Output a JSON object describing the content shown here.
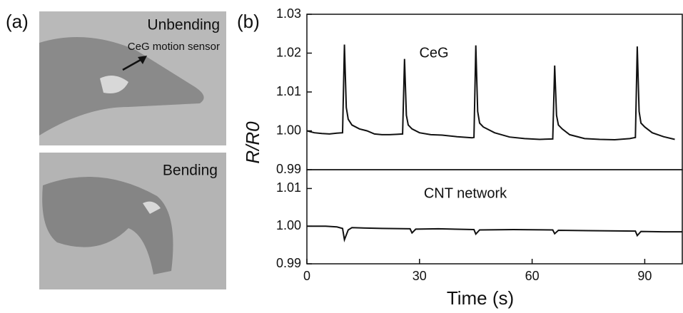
{
  "panel_a": {
    "label": "(a)",
    "top_photo_label": "Unbending",
    "annotation": "CeG motion sensor",
    "bottom_photo_label": "Bending"
  },
  "chart_data": [
    {
      "type": "line",
      "panel_label": "(b)",
      "ylabel": "R/R0",
      "xlim": [
        0,
        100
      ],
      "ylim": [
        0.99,
        1.03
      ],
      "yticks": [
        0.99,
        {
          "value": 1.0,
          "label": "1.00"
        },
        1.01,
        1.02,
        1.03
      ],
      "series": [
        {
          "name": "CeG",
          "color": "#111111",
          "x": [
            0,
            2,
            4,
            6,
            8,
            9.5,
            10,
            10.5,
            11,
            12,
            14,
            16,
            18,
            20,
            22,
            24,
            25.5,
            26,
            26.5,
            27,
            28,
            30,
            33,
            36,
            40,
            44,
            44.5,
            45,
            45.5,
            46,
            47,
            50,
            54,
            58,
            62,
            65.5,
            66,
            66.5,
            67,
            68,
            70,
            74,
            78,
            82,
            86,
            87.5,
            88,
            88.5,
            89,
            90,
            92,
            95,
            98
          ],
          "values": [
            1.0,
            0.9995,
            0.9993,
            0.9992,
            0.9994,
            0.9995,
            1.0222,
            1.006,
            1.003,
            1.0015,
            1.0005,
            1.0,
            0.9992,
            0.999,
            0.999,
            0.9991,
            0.9992,
            1.0185,
            1.004,
            1.0015,
            1.0005,
            0.9995,
            0.999,
            0.9989,
            0.9985,
            0.9982,
            0.9983,
            1.022,
            1.005,
            1.002,
            1.001,
            0.9995,
            0.9984,
            0.998,
            0.9978,
            0.9979,
            1.0168,
            1.004,
            1.0015,
            1.0005,
            0.999,
            0.998,
            0.9978,
            0.9977,
            0.998,
            0.9983,
            1.0217,
            1.005,
            1.002,
            1.001,
            0.9995,
            0.9985,
            0.9978
          ]
        }
      ]
    },
    {
      "type": "line",
      "xlabel": "Time (s)",
      "xlim": [
        0,
        100
      ],
      "ylim": [
        0.99,
        1.015
      ],
      "xticks": [
        0,
        30,
        60,
        90
      ],
      "yticks": [
        0.99,
        {
          "value": 1.0,
          "label": "1.00"
        },
        1.01
      ],
      "series": [
        {
          "name": "CNT network",
          "color": "#111111",
          "x": [
            0,
            5,
            8,
            9.5,
            10,
            11,
            12,
            20,
            27.5,
            28,
            29,
            35,
            44.5,
            45,
            46,
            55,
            65.5,
            66,
            67,
            75,
            87.5,
            88,
            89,
            95,
            100
          ],
          "values": [
            1.0,
            1.0,
            0.9998,
            0.9994,
            0.9964,
            0.999,
            0.9996,
            0.9994,
            0.9993,
            0.9982,
            0.9992,
            0.9993,
            0.9991,
            0.9979,
            0.999,
            0.9991,
            0.999,
            0.998,
            0.9989,
            0.9988,
            0.9987,
            0.9975,
            0.9986,
            0.9985,
            0.9985
          ]
        }
      ]
    }
  ]
}
